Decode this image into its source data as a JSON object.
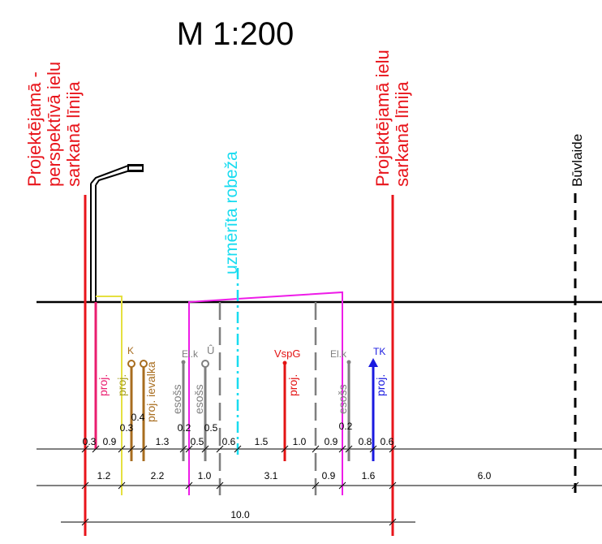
{
  "title": "M 1:200",
  "colors": {
    "red_line": "#e8141b",
    "pink": "#ea1d6f",
    "magenta": "#ee1ce8",
    "yellow": "#e5e040",
    "brown": "#a86d1f",
    "gray": "#7f7f7f",
    "cyan": "#19dcf0",
    "dark_red": "#e31313",
    "blue": "#1a1ae0",
    "black": "#000000"
  },
  "vertical_labels": {
    "red_line_left": [
      "Projektējamā -",
      "perspektīvā ielu",
      "sarkanā līnija"
    ],
    "red_line_right": [
      "Projektējamā ielu",
      "sarkanā līnija"
    ],
    "survey_boundary": "uzmērīta robeža",
    "building_line": "Būvlaide"
  },
  "utility_labels": {
    "proj_pink": "proj.",
    "proj_yellow": "proj.",
    "k": "K",
    "proj_ievalka": "proj. ievalka",
    "elk_left": "El.k",
    "u_symbol": "Û",
    "esoss_1": "esošs",
    "esoss_2": "esošs",
    "vspg": "VspG",
    "proj_vspg": "proj.",
    "elk_right": "El.k",
    "esoss_right": "esošs",
    "tk": "TK",
    "proj_tk": "proj."
  },
  "dim_row_1": [
    "0.3",
    "0.9",
    "0.3",
    "0.4",
    "1.3",
    "0.2",
    "0.5",
    "0.5",
    "0.6",
    "1.5",
    "1.0",
    "0.9",
    "0.2",
    "0.8",
    "0.6"
  ],
  "dim_row_2": [
    "1.2",
    "2.2",
    "1.0",
    "3.1",
    "0.9",
    "1.6",
    "6.0"
  ],
  "dim_row_3": [
    "10.0"
  ]
}
